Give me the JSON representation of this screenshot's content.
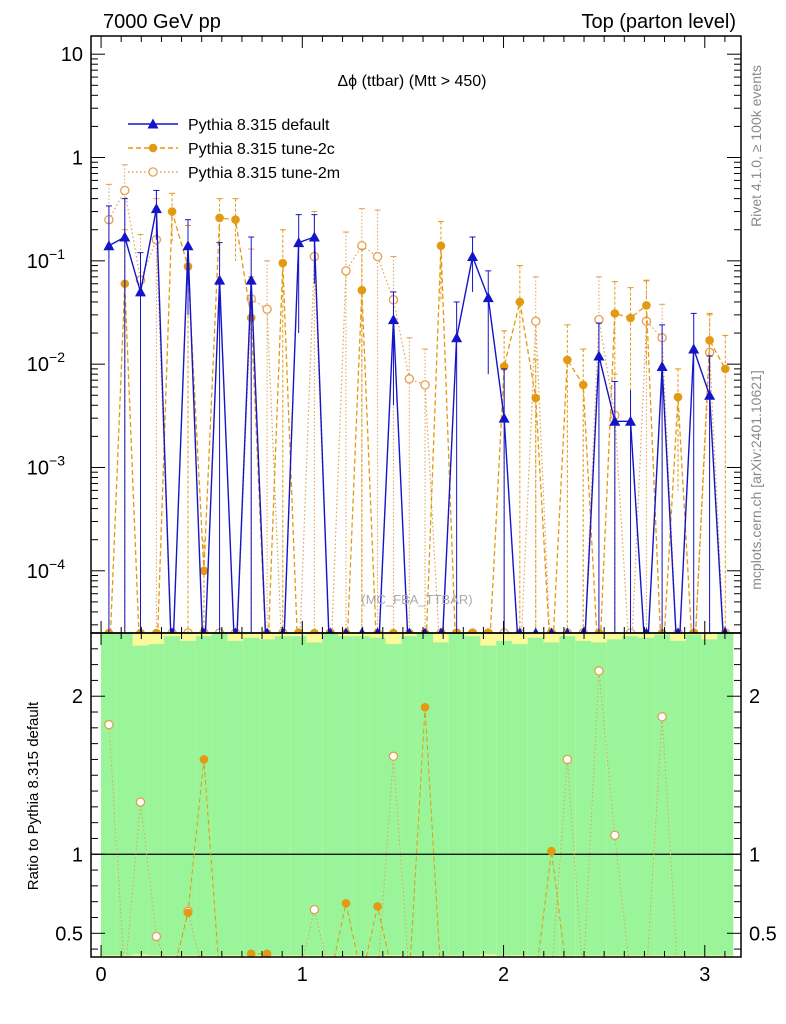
{
  "header": {
    "left": "7000 GeV pp",
    "right": "Top (parton level)"
  },
  "side": {
    "rivet": "Rivet 4.1.0, ≥ 100k events",
    "mcplots": "mcplots.cern.ch [arXiv:2401.10621]"
  },
  "watermark": "(MC_FBA_TTBAR)",
  "colors": {
    "default": "#1414c8",
    "tune2c": "#e39a10",
    "tune2m": "#e3a050",
    "band_green": "#9af59a",
    "band_yellow": "#fafa9a"
  },
  "chart_data": {
    "type": "line",
    "title": "Δϕ (ttbar) (Mtt > 450)",
    "xlabel": "",
    "ylabel_ratio": "Ratio to Pythia 8.315 default",
    "xlim": [
      -0.05,
      3.18
    ],
    "ylim_main": [
      2.5e-05,
      15
    ],
    "ylim_ratio": [
      0.35,
      2.4
    ],
    "yscale_main": "log",
    "x_ticks": [
      0,
      1,
      2,
      3
    ],
    "y_ticks_main": [
      {
        "base": "10",
        "exp": "−4",
        "v": 0.0001
      },
      {
        "base": "10",
        "exp": "−3",
        "v": 0.001
      },
      {
        "base": "10",
        "exp": "−2",
        "v": 0.01
      },
      {
        "base": "10",
        "exp": "−1",
        "v": 0.1
      },
      {
        "base": "1",
        "exp": "",
        "v": 1
      },
      {
        "base": "10",
        "exp": "",
        "v": 10
      }
    ],
    "y_ticks_ratio": [
      {
        "label": "0.5",
        "v": 0.5
      },
      {
        "label": "1",
        "v": 1
      },
      {
        "label": "2",
        "v": 2
      }
    ],
    "legend": [
      {
        "name": "Pythia 8.315 default",
        "key": "default"
      },
      {
        "name": "Pythia 8.315 tune-2c",
        "key": "tune2c"
      },
      {
        "name": "Pythia 8.315 tune-2m",
        "key": "tune2m"
      }
    ],
    "x": [
      0.039,
      0.118,
      0.196,
      0.275,
      0.353,
      0.432,
      0.511,
      0.589,
      0.668,
      0.746,
      0.825,
      0.903,
      0.982,
      1.06,
      1.139,
      1.217,
      1.296,
      1.374,
      1.453,
      1.532,
      1.61,
      1.689,
      1.767,
      1.846,
      1.924,
      2.003,
      2.081,
      2.16,
      2.238,
      2.317,
      2.396,
      2.474,
      2.553,
      2.631,
      2.71,
      2.788,
      2.867,
      2.945,
      3.024,
      3.102
    ],
    "series": [
      {
        "name": "Pythia 8.315 default",
        "key": "default",
        "values": [
          0.14,
          0.17,
          0.05,
          0.32,
          0,
          0.14,
          0,
          0.065,
          0,
          0.065,
          0,
          0,
          0.15,
          0.17,
          0,
          0,
          0,
          0,
          0.027,
          0,
          0,
          0,
          0.018,
          0.11,
          0.044,
          0.003,
          0,
          0,
          0,
          0,
          0,
          0.012,
          0.0028,
          0.0028,
          0,
          0.0095,
          0,
          0.014,
          0.005,
          0
        ],
        "err_up": [
          0.34,
          0.4,
          0.12,
          0.48,
          0,
          0.25,
          0,
          0.15,
          0,
          0.17,
          0,
          0,
          0.28,
          0.28,
          0,
          0,
          0,
          0,
          0.05,
          0,
          0,
          0,
          0.04,
          0.17,
          0.08,
          0.009,
          0,
          0,
          0,
          0,
          0,
          0.025,
          0.0068,
          0,
          0,
          0.024,
          0,
          0.031,
          0.012,
          0
        ]
      },
      {
        "name": "Pythia 8.315 tune-2c",
        "key": "tune2c",
        "values": [
          0,
          0.06,
          0,
          0,
          0.3,
          0.088,
          0.0001,
          0.26,
          0.25,
          0.028,
          0,
          0.095,
          0,
          0,
          0,
          0,
          0.052,
          0,
          0,
          0,
          0,
          0.14,
          0,
          0,
          0,
          0.0095,
          0.04,
          0.0047,
          0,
          0.011,
          0.0063,
          0,
          0.031,
          0.028,
          0.037,
          0,
          0.0048,
          0,
          0.017,
          0.009
        ],
        "err_up": [
          0,
          0.2,
          0,
          0,
          0.45,
          0.22,
          0,
          0.4,
          0.4,
          0.07,
          0,
          0.2,
          0,
          0,
          0,
          0,
          0.13,
          0,
          0,
          0,
          0,
          0.24,
          0,
          0,
          0,
          0.021,
          0.09,
          0.011,
          0,
          0.024,
          0.014,
          0,
          0.063,
          0.055,
          0.064,
          0,
          0.009,
          0,
          0.031,
          0.019
        ]
      },
      {
        "name": "Pythia 8.315 tune-2m",
        "key": "tune2m",
        "values": [
          0.25,
          0.48,
          0.065,
          0.16,
          0,
          0,
          0,
          0,
          0,
          0.043,
          0.034,
          0,
          0,
          0.11,
          0,
          0.08,
          0.14,
          0.11,
          0.042,
          0.0072,
          0.0063,
          0,
          0,
          0,
          0,
          0,
          0,
          0.026,
          0,
          0,
          0,
          0.027,
          0.0032,
          0,
          0.026,
          0.018,
          0,
          0,
          0.013,
          0
        ],
        "err_up": [
          0.55,
          0.85,
          0.18,
          0.4,
          0,
          0,
          0,
          0,
          0,
          0.13,
          0.1,
          0,
          0,
          0.3,
          0,
          0.19,
          0.32,
          0.31,
          0.11,
          0.018,
          0.014,
          0,
          0,
          0,
          0,
          0,
          0,
          0.07,
          0,
          0,
          0,
          0.07,
          0.008,
          0,
          0.065,
          0.038,
          0,
          0,
          0.03,
          0
        ]
      }
    ],
    "ratio": {
      "tune2c": [
        {
          "x": 0.432,
          "y": 0.63
        },
        {
          "x": 0.511,
          "y": 1.6
        },
        {
          "x": 0.746,
          "y": 0.37
        },
        {
          "x": 0.825,
          "y": 0.37
        },
        {
          "x": 1.217,
          "y": 0.69
        },
        {
          "x": 1.374,
          "y": 0.67
        },
        {
          "x": 1.61,
          "y": 1.93
        },
        {
          "x": 2.238,
          "y": 1.02
        }
      ],
      "tune2m": [
        {
          "x": 0.039,
          "y": 1.82
        },
        {
          "x": 0.196,
          "y": 1.33
        },
        {
          "x": 0.275,
          "y": 0.48
        },
        {
          "x": 0.432,
          "y": 0.64
        },
        {
          "x": 1.06,
          "y": 0.65
        },
        {
          "x": 1.453,
          "y": 1.62
        },
        {
          "x": 2.317,
          "y": 1.6
        },
        {
          "x": 2.474,
          "y": 2.16
        },
        {
          "x": 2.553,
          "y": 1.12
        },
        {
          "x": 2.788,
          "y": 1.87
        }
      ]
    },
    "band_green_half": [
      1.4,
      1.4,
      1.32,
      1.33,
      1.38,
      1.35,
      1.38,
      1.4,
      1.35,
      1.37,
      1.36,
      1.38,
      1.38,
      1.34,
      1.4,
      1.38,
      1.38,
      1.37,
      1.33,
      1.38,
      1.4,
      1.34,
      1.4,
      1.38,
      1.32,
      1.35,
      1.33,
      1.37,
      1.34,
      1.38,
      1.35,
      1.34,
      1.36,
      1.38,
      1.37,
      1.39,
      1.35,
      1.39,
      1.36,
      1.4
    ],
    "band_yellow_half": [
      1.45,
      1.45,
      1.42,
      1.45,
      1.45,
      1.45,
      1.45,
      1.45,
      1.45,
      1.45,
      1.45,
      1.45,
      1.45,
      1.45,
      1.45,
      1.45,
      1.45,
      1.45,
      1.45,
      1.45,
      1.45,
      1.45,
      1.45,
      1.45,
      1.45,
      1.45,
      1.45,
      1.45,
      1.45,
      1.45,
      1.45,
      1.45,
      1.45,
      1.45,
      1.45,
      1.45,
      1.45,
      1.45,
      1.45,
      1.45
    ]
  }
}
